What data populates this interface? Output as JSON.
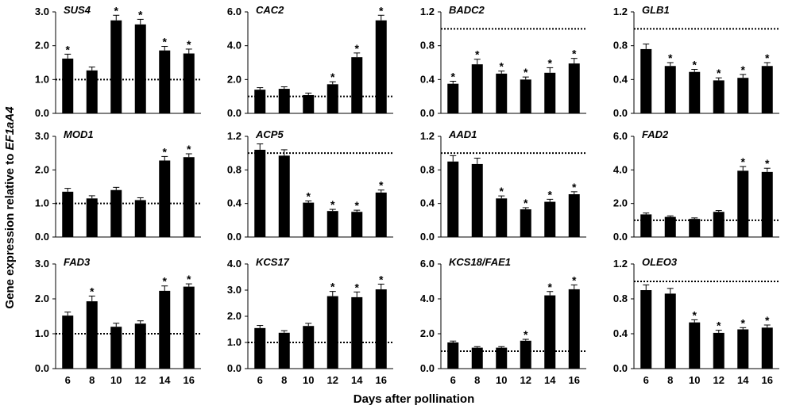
{
  "ylabel_prefix": "Gene expression relative to ",
  "ylabel_gene": "EF1aA4",
  "xlabel": "Days after pollination",
  "chart_data": [
    {
      "type": "bar",
      "title": "SUS4",
      "categories": [
        "6",
        "8",
        "10",
        "12",
        "14",
        "16"
      ],
      "values": [
        1.62,
        1.27,
        2.75,
        2.63,
        1.86,
        1.77
      ],
      "errors": [
        0.13,
        0.1,
        0.15,
        0.15,
        0.12,
        0.13
      ],
      "significant": [
        true,
        false,
        true,
        true,
        true,
        true
      ],
      "ylim": [
        0,
        3
      ],
      "yticks": [
        "0.0",
        "1.0",
        "2.0",
        "3.0"
      ],
      "reference": 1.0
    },
    {
      "type": "bar",
      "title": "CAC2",
      "categories": [
        "6",
        "8",
        "10",
        "12",
        "14",
        "16"
      ],
      "values": [
        1.4,
        1.45,
        1.08,
        1.72,
        3.32,
        5.5
      ],
      "errors": [
        0.12,
        0.12,
        0.12,
        0.15,
        0.25,
        0.3
      ],
      "significant": [
        false,
        false,
        false,
        true,
        true,
        true
      ],
      "ylim": [
        0,
        6
      ],
      "yticks": [
        "0.0",
        "2.0",
        "4.0",
        "6.0"
      ],
      "reference": 1.0
    },
    {
      "type": "bar",
      "title": "BADC2",
      "categories": [
        "6",
        "8",
        "10",
        "12",
        "14",
        "16"
      ],
      "values": [
        0.35,
        0.58,
        0.47,
        0.4,
        0.48,
        0.59
      ],
      "errors": [
        0.03,
        0.06,
        0.03,
        0.03,
        0.06,
        0.06
      ],
      "significant": [
        true,
        true,
        true,
        true,
        true,
        true
      ],
      "ylim": [
        0,
        1.2
      ],
      "yticks": [
        "0.0",
        "0.4",
        "0.8",
        "1.2"
      ],
      "reference": 1.0
    },
    {
      "type": "bar",
      "title": "GLB1",
      "categories": [
        "6",
        "8",
        "10",
        "12",
        "14",
        "16"
      ],
      "values": [
        0.76,
        0.56,
        0.49,
        0.39,
        0.42,
        0.56
      ],
      "errors": [
        0.06,
        0.04,
        0.03,
        0.03,
        0.04,
        0.04
      ],
      "significant": [
        false,
        true,
        true,
        true,
        true,
        true
      ],
      "ylim": [
        0,
        1.2
      ],
      "yticks": [
        "0.0",
        "0.4",
        "0.8",
        "1.2"
      ],
      "reference": 1.0
    },
    {
      "type": "bar",
      "title": "MOD1",
      "categories": [
        "6",
        "8",
        "10",
        "12",
        "14",
        "16"
      ],
      "values": [
        1.35,
        1.15,
        1.4,
        1.1,
        2.28,
        2.38
      ],
      "errors": [
        0.1,
        0.08,
        0.08,
        0.07,
        0.12,
        0.1
      ],
      "significant": [
        false,
        false,
        false,
        false,
        true,
        true
      ],
      "ylim": [
        0,
        3
      ],
      "yticks": [
        "0.0",
        "1.0",
        "2.0",
        "3.0"
      ],
      "reference": 1.0
    },
    {
      "type": "bar",
      "title": "ACP5",
      "categories": [
        "6",
        "8",
        "10",
        "12",
        "14",
        "16"
      ],
      "values": [
        1.04,
        0.97,
        0.41,
        0.31,
        0.3,
        0.53
      ],
      "errors": [
        0.07,
        0.07,
        0.02,
        0.02,
        0.02,
        0.03
      ],
      "significant": [
        false,
        false,
        true,
        true,
        true,
        true
      ],
      "ylim": [
        0,
        1.2
      ],
      "yticks": [
        "0.0",
        "0.4",
        "0.8",
        "1.2"
      ],
      "reference": 1.0
    },
    {
      "type": "bar",
      "title": "AAD1",
      "categories": [
        "6",
        "8",
        "10",
        "12",
        "14",
        "16"
      ],
      "values": [
        0.9,
        0.87,
        0.46,
        0.33,
        0.42,
        0.51
      ],
      "errors": [
        0.07,
        0.07,
        0.03,
        0.02,
        0.03,
        0.03
      ],
      "significant": [
        false,
        false,
        true,
        true,
        true,
        true
      ],
      "ylim": [
        0,
        1.2
      ],
      "yticks": [
        "0.0",
        "0.4",
        "0.8",
        "1.2"
      ],
      "reference": 1.0
    },
    {
      "type": "bar",
      "title": "FAD2",
      "categories": [
        "6",
        "8",
        "10",
        "12",
        "14",
        "16"
      ],
      "values": [
        1.35,
        1.2,
        1.08,
        1.5,
        3.95,
        3.88
      ],
      "errors": [
        0.08,
        0.06,
        0.06,
        0.08,
        0.25,
        0.22
      ],
      "significant": [
        false,
        false,
        false,
        false,
        true,
        true
      ],
      "ylim": [
        0,
        6
      ],
      "yticks": [
        "0.0",
        "2.0",
        "4.0",
        "6.0"
      ],
      "reference": 1.0
    },
    {
      "type": "bar",
      "title": "FAD3",
      "categories": [
        "6",
        "8",
        "10",
        "12",
        "14",
        "16"
      ],
      "values": [
        1.52,
        1.93,
        1.2,
        1.29,
        2.23,
        2.35
      ],
      "errors": [
        0.1,
        0.15,
        0.1,
        0.08,
        0.14,
        0.08
      ],
      "significant": [
        false,
        true,
        false,
        false,
        true,
        true
      ],
      "ylim": [
        0,
        3
      ],
      "yticks": [
        "0.0",
        "1.0",
        "2.0",
        "3.0"
      ],
      "reference": 1.0
    },
    {
      "type": "bar",
      "title": "KCS17",
      "categories": [
        "6",
        "8",
        "10",
        "12",
        "14",
        "16"
      ],
      "values": [
        1.55,
        1.37,
        1.63,
        2.77,
        2.73,
        3.03
      ],
      "errors": [
        0.1,
        0.08,
        0.1,
        0.18,
        0.2,
        0.2
      ],
      "significant": [
        false,
        false,
        false,
        true,
        true,
        true
      ],
      "ylim": [
        0,
        4
      ],
      "yticks": [
        "0.0",
        "1.0",
        "2.0",
        "3.0",
        "4.0"
      ],
      "reference": 1.0
    },
    {
      "type": "bar",
      "title": "KCS18/FAE1",
      "categories": [
        "6",
        "8",
        "10",
        "12",
        "14",
        "16"
      ],
      "values": [
        1.5,
        1.2,
        1.2,
        1.6,
        4.2,
        4.55
      ],
      "errors": [
        0.08,
        0.06,
        0.06,
        0.08,
        0.22,
        0.25
      ],
      "significant": [
        false,
        false,
        false,
        true,
        true,
        true
      ],
      "ylim": [
        0,
        6
      ],
      "yticks": [
        "0.0",
        "2.0",
        "4.0",
        "6.0"
      ],
      "reference": 1.0
    },
    {
      "type": "bar",
      "title": "OLEO3",
      "categories": [
        "6",
        "8",
        "10",
        "12",
        "14",
        "16"
      ],
      "values": [
        0.9,
        0.86,
        0.53,
        0.41,
        0.45,
        0.47
      ],
      "errors": [
        0.06,
        0.06,
        0.03,
        0.03,
        0.02,
        0.03
      ],
      "significant": [
        false,
        false,
        true,
        true,
        true,
        true
      ],
      "ylim": [
        0,
        1.2
      ],
      "yticks": [
        "0.0",
        "0.4",
        "0.8",
        "1.2"
      ],
      "reference": 1.0
    }
  ]
}
